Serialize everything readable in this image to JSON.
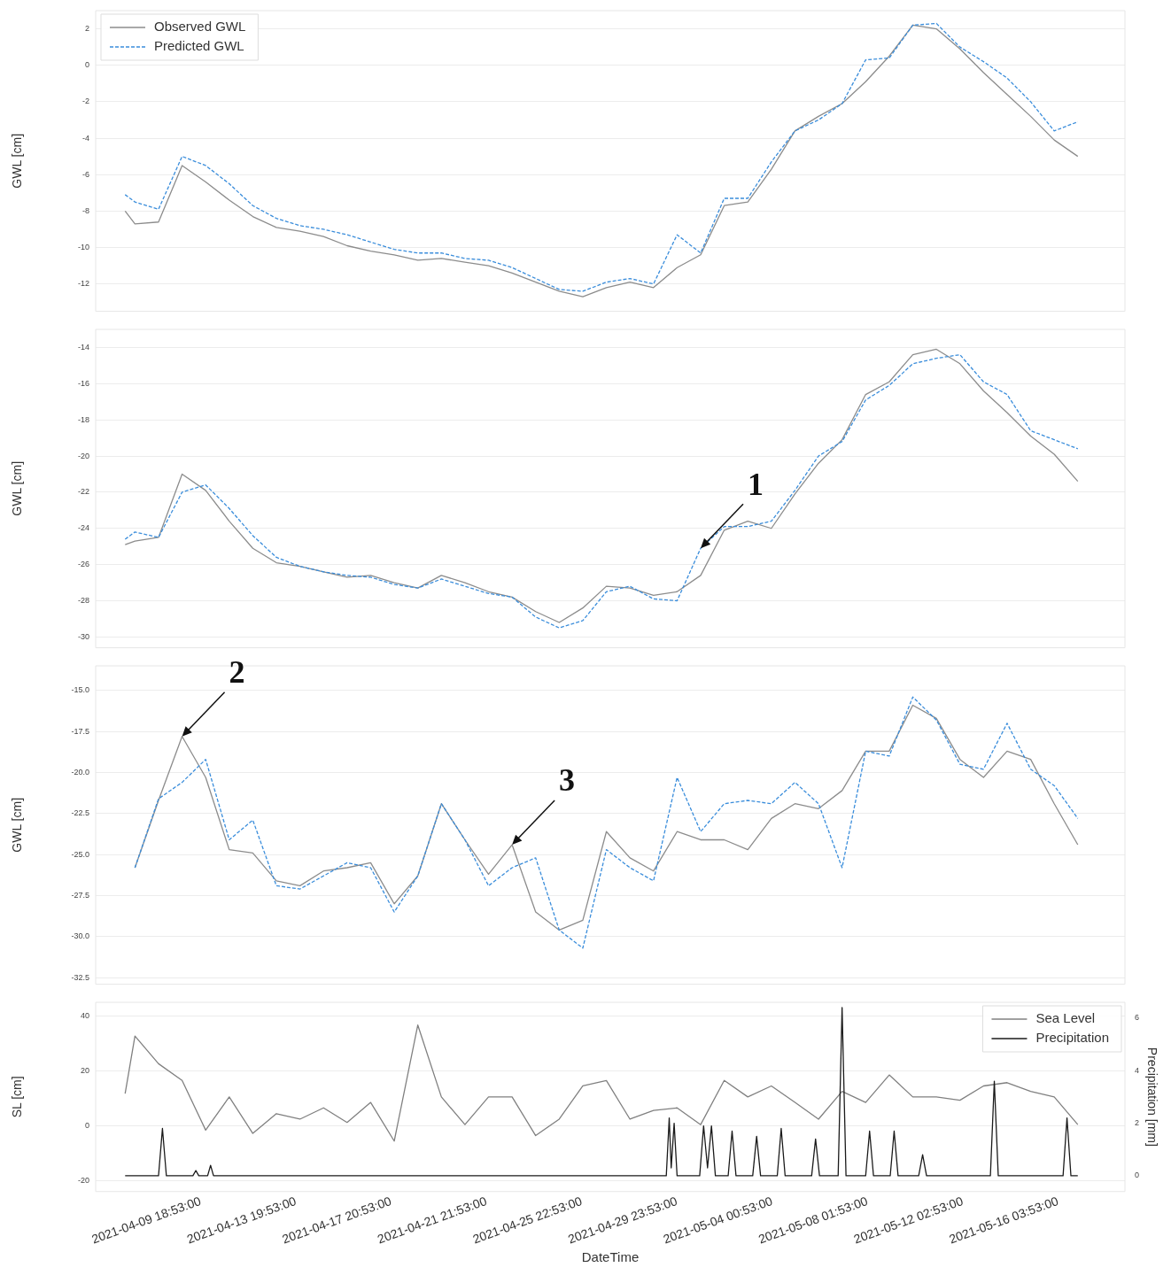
{
  "chart_data": [
    {
      "type": "line",
      "ylabel": "GWL [cm]",
      "xlim": [
        "2021-04-05T08:00",
        "2021-05-19T00:00"
      ],
      "ylim": [
        -13.5,
        3
      ],
      "yticks": [
        -12,
        -10,
        -8,
        -6,
        -4,
        -2,
        0,
        2
      ],
      "grid": "y",
      "legend": "top left",
      "tick_labels": "y",
      "marker": "none",
      "x": [
        "2021-04-06T14:00",
        "2021-04-07",
        "2021-04-08",
        "2021-04-09",
        "2021-04-10",
        "2021-04-11",
        "2021-04-12",
        "2021-04-13",
        "2021-04-14",
        "2021-04-15",
        "2021-04-16",
        "2021-04-17",
        "2021-04-18",
        "2021-04-19",
        "2021-04-20",
        "2021-04-21",
        "2021-04-22",
        "2021-04-23",
        "2021-04-24",
        "2021-04-25",
        "2021-04-26",
        "2021-04-27",
        "2021-04-28",
        "2021-04-29",
        "2021-04-30",
        "2021-05-01",
        "2021-05-02",
        "2021-05-03",
        "2021-05-04",
        "2021-05-05",
        "2021-05-06",
        "2021-05-07",
        "2021-05-08",
        "2021-05-09",
        "2021-05-10",
        "2021-05-11",
        "2021-05-12",
        "2021-05-13",
        "2021-05-14",
        "2021-05-15",
        "2021-05-16",
        "2021-05-17"
      ],
      "series": [
        {
          "name": "Observed GWL",
          "color": "#8c8c8c",
          "line_style": "solid",
          "values": [
            -8.0,
            -8.7,
            -8.6,
            -5.5,
            -6.4,
            -7.4,
            -8.3,
            -8.9,
            -9.1,
            -9.4,
            -9.9,
            -10.2,
            -10.4,
            -10.7,
            -10.6,
            -10.8,
            -11.0,
            -11.4,
            -11.9,
            -12.4,
            -12.7,
            -12.2,
            -11.9,
            -12.2,
            -11.1,
            -10.4,
            -7.7,
            -7.5,
            -5.7,
            -3.6,
            -2.8,
            -2.1,
            -0.9,
            0.5,
            2.2,
            2.0,
            0.9,
            -0.4,
            -1.6,
            -2.8,
            -4.1,
            -5.0
          ]
        },
        {
          "name": "Predicted GWL",
          "color": "#3a8ddb",
          "line_style": "dashed",
          "values": [
            -7.1,
            -7.5,
            -7.9,
            -5.0,
            -5.5,
            -6.5,
            -7.7,
            -8.4,
            -8.8,
            -9.0,
            -9.3,
            -9.7,
            -10.1,
            -10.3,
            -10.3,
            -10.6,
            -10.7,
            -11.1,
            -11.7,
            -12.3,
            -12.4,
            -11.9,
            -11.7,
            -12.0,
            -9.3,
            -10.3,
            -7.3,
            -7.3,
            -5.3,
            -3.6,
            -3.0,
            -2.1,
            0.3,
            0.4,
            2.2,
            2.3,
            1.0,
            0.2,
            -0.7,
            -2.0,
            -3.6,
            -3.1
          ]
        }
      ]
    },
    {
      "type": "line",
      "ylabel": "GWL [cm]",
      "xlim": [
        "2021-04-05T08:00",
        "2021-05-19T00:00"
      ],
      "ylim": [
        -30.6,
        -13
      ],
      "yticks": [
        -30,
        -28,
        -26,
        -24,
        -22,
        -20,
        -18,
        -16,
        -14
      ],
      "grid": "y",
      "tick_labels": "y",
      "marker": "none",
      "annotations": [
        {
          "text": "1",
          "x": "2021-05-01",
          "y": -25.1
        }
      ],
      "x": [
        "2021-04-06T14:00",
        "2021-04-07",
        "2021-04-08",
        "2021-04-09",
        "2021-04-10",
        "2021-04-11",
        "2021-04-12",
        "2021-04-13",
        "2021-04-14",
        "2021-04-15",
        "2021-04-16",
        "2021-04-17",
        "2021-04-18",
        "2021-04-19",
        "2021-04-20",
        "2021-04-21",
        "2021-04-22",
        "2021-04-23",
        "2021-04-24",
        "2021-04-25",
        "2021-04-26",
        "2021-04-27",
        "2021-04-28",
        "2021-04-29",
        "2021-04-30",
        "2021-05-01",
        "2021-05-02",
        "2021-05-03",
        "2021-05-04",
        "2021-05-05",
        "2021-05-06",
        "2021-05-07",
        "2021-05-08",
        "2021-05-09",
        "2021-05-10",
        "2021-05-11",
        "2021-05-12",
        "2021-05-13",
        "2021-05-14",
        "2021-05-15",
        "2021-05-16",
        "2021-05-17"
      ],
      "series": [
        {
          "color": "#8c8c8c",
          "line_style": "solid",
          "values": [
            -24.9,
            -24.7,
            -24.5,
            -21.0,
            -21.9,
            -23.6,
            -25.1,
            -25.9,
            -26.1,
            -26.4,
            -26.7,
            -26.6,
            -27.0,
            -27.3,
            -26.6,
            -27.0,
            -27.5,
            -27.8,
            -28.6,
            -29.2,
            -28.4,
            -27.2,
            -27.3,
            -27.7,
            -27.5,
            -26.6,
            -24.1,
            -23.6,
            -24.0,
            -22.1,
            -20.4,
            -19.1,
            -16.6,
            -15.9,
            -14.4,
            -14.1,
            -14.9,
            -16.4,
            -17.6,
            -18.9,
            -19.9,
            -21.4
          ]
        },
        {
          "color": "#3a8ddb",
          "line_style": "dashed",
          "values": [
            -24.6,
            -24.2,
            -24.5,
            -22.0,
            -21.6,
            -22.9,
            -24.4,
            -25.6,
            -26.1,
            -26.4,
            -26.6,
            -26.7,
            -27.1,
            -27.3,
            -26.8,
            -27.2,
            -27.6,
            -27.8,
            -28.9,
            -29.5,
            -29.1,
            -27.5,
            -27.2,
            -27.9,
            -28.0,
            -25.1,
            -23.9,
            -23.9,
            -23.6,
            -21.9,
            -20.0,
            -19.2,
            -16.9,
            -16.1,
            -14.9,
            -14.6,
            -14.4,
            -15.9,
            -16.6,
            -18.6,
            -19.1,
            -19.6
          ]
        }
      ]
    },
    {
      "type": "line",
      "ylabel": "GWL [cm]",
      "xlim": [
        "2021-04-05T08:00",
        "2021-05-19T00:00"
      ],
      "ylim": [
        -32.9,
        -13.5
      ],
      "yticks": [
        {
          "value": -32.5,
          "label": "-32.5"
        },
        {
          "value": -30,
          "label": "-30.0"
        },
        {
          "value": -27.5,
          "label": "-27.5"
        },
        {
          "value": -25,
          "label": "-25.0"
        },
        {
          "value": -22.5,
          "label": "-22.5"
        },
        {
          "value": -20,
          "label": "-20.0"
        },
        {
          "value": -17.5,
          "label": "-17.5"
        },
        {
          "value": -15,
          "label": "-15.0"
        }
      ],
      "grid": "y",
      "tick_labels": "y",
      "marker": "none",
      "annotations": [
        {
          "text": "2",
          "x": "2021-04-09",
          "y": -17.8
        },
        {
          "text": "3",
          "x": "2021-04-23",
          "y": -24.4
        }
      ],
      "x": [
        "2021-04-07",
        "2021-04-08",
        "2021-04-09",
        "2021-04-10",
        "2021-04-11",
        "2021-04-12",
        "2021-04-13",
        "2021-04-14",
        "2021-04-15",
        "2021-04-16",
        "2021-04-17",
        "2021-04-18",
        "2021-04-19",
        "2021-04-20",
        "2021-04-21",
        "2021-04-22",
        "2021-04-23",
        "2021-04-24",
        "2021-04-25",
        "2021-04-26",
        "2021-04-27",
        "2021-04-28",
        "2021-04-29",
        "2021-04-30",
        "2021-05-01",
        "2021-05-02",
        "2021-05-03",
        "2021-05-04",
        "2021-05-05",
        "2021-05-06",
        "2021-05-07",
        "2021-05-08",
        "2021-05-09",
        "2021-05-10",
        "2021-05-11",
        "2021-05-12",
        "2021-05-13",
        "2021-05-14",
        "2021-05-15",
        "2021-05-16",
        "2021-05-17"
      ],
      "series": [
        {
          "color": "#8c8c8c",
          "line_style": "solid",
          "values": [
            -25.8,
            -21.7,
            -17.8,
            -20.3,
            -24.7,
            -24.9,
            -26.6,
            -26.9,
            -26.0,
            -25.8,
            -25.5,
            -28.0,
            -26.3,
            -21.9,
            -24.1,
            -26.2,
            -24.4,
            -28.5,
            -29.6,
            -29.0,
            -23.6,
            -25.2,
            -26.0,
            -23.6,
            -24.1,
            -24.1,
            -24.7,
            -22.8,
            -21.9,
            -22.2,
            -21.1,
            -18.7,
            -18.7,
            -15.9,
            -16.7,
            -19.2,
            -20.3,
            -18.7,
            -19.2,
            -21.9,
            -24.4
          ]
        },
        {
          "color": "#3a8ddb",
          "line_style": "dashed",
          "values": [
            -25.8,
            -21.6,
            -20.6,
            -19.2,
            -24.1,
            -22.9,
            -26.9,
            -27.1,
            -26.3,
            -25.5,
            -25.8,
            -28.5,
            -26.3,
            -21.9,
            -24.1,
            -26.9,
            -25.8,
            -25.2,
            -29.6,
            -30.7,
            -24.7,
            -25.8,
            -26.6,
            -20.3,
            -23.6,
            -21.9,
            -21.7,
            -21.9,
            -20.6,
            -21.9,
            -25.8,
            -18.7,
            -19.0,
            -15.4,
            -16.8,
            -19.5,
            -19.8,
            -17.0,
            -19.8,
            -20.8,
            -22.8
          ]
        }
      ]
    },
    {
      "type": "line",
      "xlabel": "DateTime",
      "ylabel": "SL [cm]",
      "y2label": "Precipitation [mm]",
      "xlim": [
        "2021-04-05T08:00",
        "2021-05-19T00:00"
      ],
      "ylim": [
        -24,
        45
      ],
      "yticks": [
        -20,
        0,
        20,
        40
      ],
      "y2lim": [
        -0.6,
        6.6
      ],
      "y2ticks": [
        0,
        2,
        4,
        6
      ],
      "grid": "y",
      "legend": "top right",
      "marker": "none",
      "xticks": [
        {
          "value": "2021-04-09T18:53",
          "label": "2021-04-09 18:53:00"
        },
        {
          "value": "2021-04-13T19:53",
          "label": "2021-04-13 19:53:00"
        },
        {
          "value": "2021-04-17T20:53",
          "label": "2021-04-17 20:53:00"
        },
        {
          "value": "2021-04-21T21:53",
          "label": "2021-04-21 21:53:00"
        },
        {
          "value": "2021-04-25T22:53",
          "label": "2021-04-25 22:53:00"
        },
        {
          "value": "2021-04-29T23:53",
          "label": "2021-04-29 23:53:00"
        },
        {
          "value": "2021-05-04T00:53",
          "label": "2021-05-04 00:53:00"
        },
        {
          "value": "2021-05-08T01:53",
          "label": "2021-05-08 01:53:00"
        },
        {
          "value": "2021-05-12T02:53",
          "label": "2021-05-12 02:53:00"
        },
        {
          "value": "2021-05-16T03:53",
          "label": "2021-05-16 03:53:00"
        }
      ],
      "x": [
        "2021-04-06T14:00",
        "2021-04-07",
        "2021-04-08",
        "2021-04-09",
        "2021-04-10",
        "2021-04-11",
        "2021-04-12",
        "2021-04-13",
        "2021-04-14",
        "2021-04-15",
        "2021-04-16",
        "2021-04-17",
        "2021-04-18",
        "2021-04-19",
        "2021-04-20",
        "2021-04-21",
        "2021-04-22",
        "2021-04-23",
        "2021-04-24",
        "2021-04-25",
        "2021-04-26",
        "2021-04-27",
        "2021-04-28",
        "2021-04-29",
        "2021-04-30",
        "2021-05-01",
        "2021-05-02",
        "2021-05-03",
        "2021-05-04",
        "2021-05-05",
        "2021-05-06",
        "2021-05-07",
        "2021-05-08",
        "2021-05-09",
        "2021-05-10",
        "2021-05-11",
        "2021-05-12",
        "2021-05-13",
        "2021-05-14",
        "2021-05-15",
        "2021-05-16",
        "2021-05-17"
      ],
      "series": [
        {
          "name": "Sea Level",
          "color": "#808080",
          "line_style": "solid",
          "values": [
            11.7,
            32.7,
            22.6,
            16.5,
            -1.6,
            10.5,
            -2.8,
            4.4,
            2.4,
            6.5,
            1.2,
            8.5,
            -5.6,
            36.7,
            10.5,
            0.4,
            10.5,
            10.5,
            -3.6,
            2.4,
            14.5,
            16.5,
            2.4,
            5.6,
            6.5,
            0.4,
            16.5,
            10.5,
            14.5,
            8.5,
            2.4,
            12.5,
            8.5,
            18.5,
            10.5,
            10.5,
            9.3,
            14.5,
            15.7,
            12.5,
            10.5,
            0.4
          ]
        },
        {
          "name": "Precipitation",
          "color": "#1a1a1a",
          "line_style": "solid",
          "axis": "y2",
          "x": [
            "2021-04-06T14:00",
            "2021-04-08T00:00",
            "2021-04-08T04:00",
            "2021-04-08T08:00",
            "2021-04-09T11:00",
            "2021-04-09T14:00",
            "2021-04-09T17:00",
            "2021-04-10T02:00",
            "2021-04-10T05:00",
            "2021-04-10T08:00",
            "2021-04-29T13:00",
            "2021-04-29T16:00",
            "2021-04-29T18:00",
            "2021-04-29T21:00",
            "2021-04-30T00:00",
            "2021-04-30T23:00",
            "2021-05-01T03:00",
            "2021-05-01T07:00",
            "2021-05-01T11:00",
            "2021-05-01T15:00",
            "2021-05-02T04:00",
            "2021-05-02T08:00",
            "2021-05-02T12:00",
            "2021-05-03T05:00",
            "2021-05-03T09:00",
            "2021-05-03T13:00",
            "2021-05-04T06:00",
            "2021-05-04T10:00",
            "2021-05-04T14:00",
            "2021-05-05T17:00",
            "2021-05-05T21:00",
            "2021-05-06T01:00",
            "2021-05-06T20:00",
            "2021-05-07T00:00",
            "2021-05-07T04:00",
            "2021-05-08T00:00",
            "2021-05-08T04:00",
            "2021-05-08T08:00",
            "2021-05-09T01:00",
            "2021-05-09T05:00",
            "2021-05-09T09:00",
            "2021-05-10T06:00",
            "2021-05-10T10:00",
            "2021-05-10T14:00",
            "2021-05-13T07:00",
            "2021-05-13T11:00",
            "2021-05-13T15:00",
            "2021-05-16T09:00",
            "2021-05-16T13:00",
            "2021-05-16T17:00",
            "2021-05-17T00:00"
          ],
          "values": [
            0,
            0,
            1.8,
            0,
            0,
            0.2,
            0,
            0,
            0.4,
            0,
            0,
            2.2,
            0.3,
            2.0,
            0,
            0,
            1.9,
            0.3,
            1.9,
            0,
            0,
            1.7,
            0,
            0,
            1.5,
            0,
            0,
            1.8,
            0,
            0,
            1.4,
            0,
            0,
            6.4,
            0,
            0,
            1.7,
            0,
            0,
            1.7,
            0,
            0,
            0.8,
            0,
            0,
            3.6,
            0,
            0,
            2.2,
            0,
            0
          ]
        }
      ]
    }
  ]
}
